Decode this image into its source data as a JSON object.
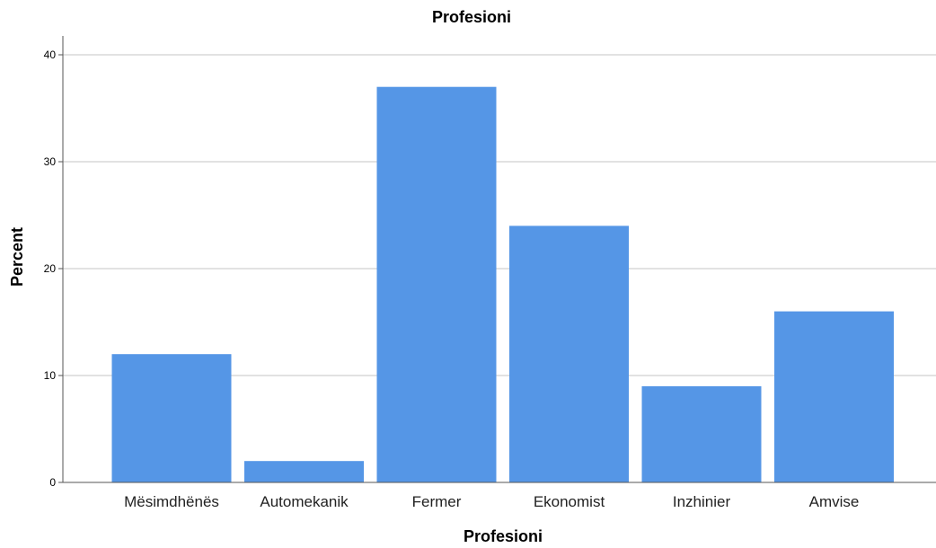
{
  "chart_data": {
    "type": "bar",
    "title": "Profesioni",
    "xlabel": "Profesioni",
    "ylabel": "Percent",
    "categories": [
      "Mësimdhënës",
      "Automekanik",
      "Fermer",
      "Ekonomist",
      "Inzhinier",
      "Amvise"
    ],
    "values": [
      12,
      2,
      37,
      24,
      9,
      16
    ],
    "ylim": [
      0,
      42
    ],
    "yticks": [
      0,
      10,
      20,
      30,
      40
    ],
    "grid": true,
    "bar_color": "#5596e6",
    "grid_color": "#d9d9d9",
    "axis_color": "#555555"
  }
}
